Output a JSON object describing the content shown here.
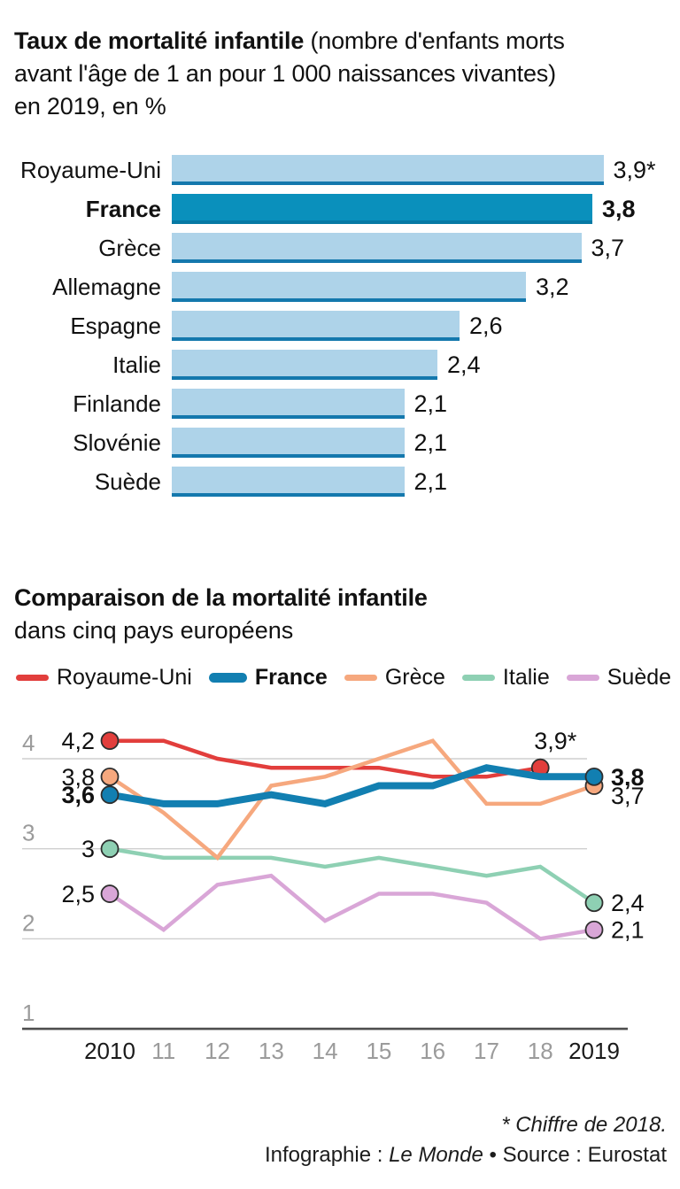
{
  "accent_colors": {
    "bar_light": "#aed3e9",
    "bar_edge": "#1478ad",
    "bar_highlight": "#0a90bc",
    "bar_highlight_edge": "#0679a4",
    "gridline": "#cfcfcf",
    "axis": "#4e4e4e",
    "tick_gray": "#9b9b9b",
    "tick_dark": "#1a1a1a"
  },
  "chart_data": [
    {
      "type": "bar",
      "orientation": "horizontal",
      "title_bold": "Taux de mortalité infantile",
      "title_rest_line1": " (nombre d'enfants morts",
      "title_line2": "avant l'âge de 1 an pour 1 000 naissances vivantes)",
      "title_line3": "en 2019, en %",
      "categories": [
        "Royaume-Uni",
        "France",
        "Grèce",
        "Allemagne",
        "Espagne",
        "Italie",
        "Finlande",
        "Slovénie",
        "Suède"
      ],
      "values": [
        3.9,
        3.8,
        3.7,
        3.2,
        2.6,
        2.4,
        2.1,
        2.1,
        2.1
      ],
      "value_labels": [
        "3,9*",
        "3,8",
        "3,7",
        "3,2",
        "2,6",
        "2,4",
        "2,1",
        "2,1",
        "2,1"
      ],
      "highlight_index": 1,
      "xlim": [
        0,
        3.9
      ]
    },
    {
      "type": "line",
      "title": "Comparaison de la mortalité infantile",
      "subtitle": "dans cinq pays européens",
      "x": [
        2010,
        2011,
        2012,
        2013,
        2014,
        2015,
        2016,
        2017,
        2018,
        2019
      ],
      "x_tick_labels": [
        "2010",
        "11",
        "12",
        "13",
        "14",
        "15",
        "16",
        "17",
        "18",
        "2019"
      ],
      "y_ticks": [
        4,
        3,
        2,
        1
      ],
      "ylim": [
        1,
        4.45
      ],
      "grid": "horizontal",
      "legend_position": "top",
      "series": [
        {
          "name": "Royaume-Uni",
          "color": "#e23e3c",
          "bold": false,
          "values": [
            4.2,
            4.2,
            4.0,
            3.9,
            3.9,
            3.9,
            3.8,
            3.8,
            3.9,
            null
          ],
          "start_label": "4,2",
          "end_label": "3,9*",
          "end_label_position": "above",
          "end_label_dy": 0
        },
        {
          "name": "France",
          "color": "#127fb1",
          "bold": true,
          "values": [
            3.6,
            3.5,
            3.5,
            3.6,
            3.5,
            3.7,
            3.7,
            3.9,
            3.8,
            3.8
          ],
          "start_label": "3,6",
          "end_label": "3,8",
          "end_label_position": "right",
          "end_label_dy": 0
        },
        {
          "name": "Grèce",
          "color": "#f6a87e",
          "bold": false,
          "values": [
            3.8,
            3.4,
            2.9,
            3.7,
            3.8,
            4.0,
            4.2,
            3.5,
            3.5,
            3.7
          ],
          "start_label": "3,8",
          "end_label": "3,7",
          "end_label_position": "right",
          "end_label_dy": 11
        },
        {
          "name": "Italie",
          "color": "#8ed0b3",
          "bold": false,
          "values": [
            3.0,
            2.9,
            2.9,
            2.9,
            2.8,
            2.9,
            2.8,
            2.7,
            2.8,
            2.4
          ],
          "start_label": "3",
          "end_label": "2,4",
          "end_label_position": "right",
          "end_label_dy": 0
        },
        {
          "name": "Suède",
          "color": "#d9a6d7",
          "bold": false,
          "values": [
            2.5,
            2.1,
            2.6,
            2.7,
            2.2,
            2.5,
            2.5,
            2.4,
            2.0,
            2.1
          ],
          "start_label": "2,5",
          "end_label": "2,1",
          "end_label_position": "right",
          "end_label_dy": 0
        }
      ]
    }
  ],
  "footer": {
    "note": "* Chiffre de 2018.",
    "credit_prefix": "Infographie : ",
    "credit_source": "Le Monde",
    "credit_suffix": " • Source : Eurostat"
  }
}
